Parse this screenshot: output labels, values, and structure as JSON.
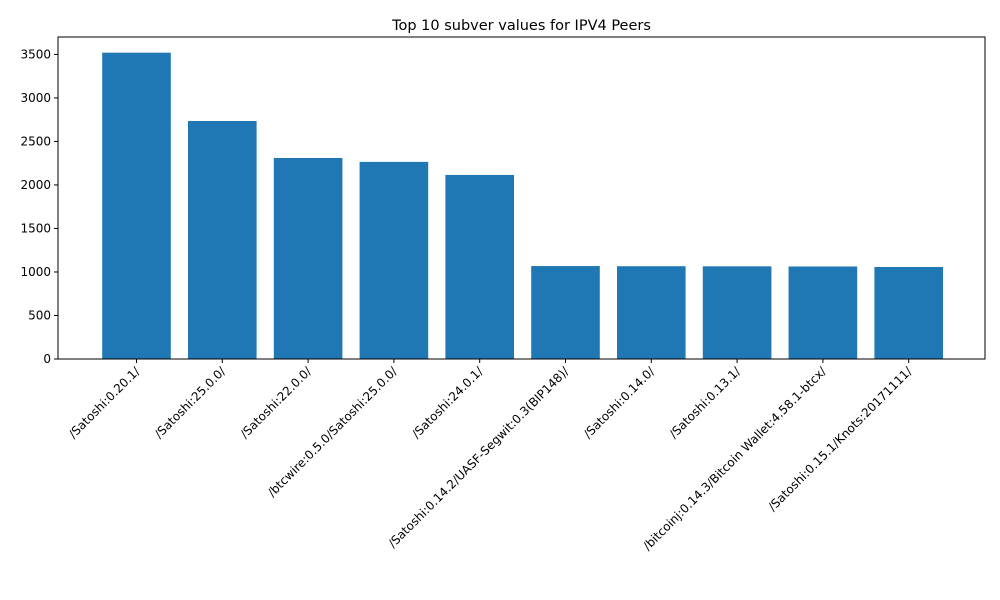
{
  "chart_data": {
    "type": "bar",
    "title": "Top 10 subver values for IPV4 Peers",
    "xlabel": "",
    "ylabel": "",
    "categories": [
      "/Satoshi:0.20.1/",
      "/Satoshi:25.0.0/",
      "/Satoshi:22.0.0/",
      "/btcwire:0.5.0/Satoshi:25.0.0/",
      "/Satoshi:24.0.1/",
      "/Satoshi:0.14.2/UASF-Segwit:0.3(BIP148)/",
      "/Satoshi:0.14.0/",
      "/Satoshi:0.13.1/",
      "/bitcoinj:0.14.3/Bitcoin Wallet:4.58.1-btcx/",
      "/Satoshi:0.15.1/Knots:20171111/"
    ],
    "values": [
      3520,
      2735,
      2310,
      2265,
      2115,
      1068,
      1066,
      1065,
      1063,
      1057
    ],
    "ylim": [
      0,
      3700
    ],
    "yticks": [
      0,
      500,
      1000,
      1500,
      2000,
      2500,
      3000,
      3500
    ],
    "bar_color": "#1f77b4",
    "grid": false,
    "legend": "none"
  }
}
